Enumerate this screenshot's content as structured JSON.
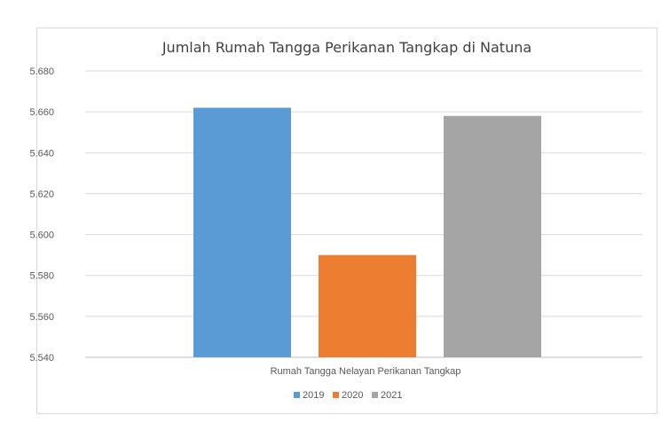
{
  "chart_data": {
    "type": "bar",
    "title": "Jumlah Rumah Tangga Perikanan Tangkap di Natuna",
    "categories": [
      "Rumah Tangga Nelayan Perikanan Tangkap"
    ],
    "series": [
      {
        "name": "2019",
        "values": [
          5662
        ],
        "color": "#5b9bd5"
      },
      {
        "name": "2020",
        "values": [
          5590
        ],
        "color": "#ed7d31"
      },
      {
        "name": "2021",
        "values": [
          5658
        ],
        "color": "#a5a5a5"
      }
    ],
    "ylim": [
      5540,
      5680
    ],
    "yticks": [
      "5.540",
      "5.560",
      "5.580",
      "5.600",
      "5.620",
      "5.640",
      "5.660",
      "5.680"
    ],
    "grid": true,
    "legend": "bottom",
    "xlabel": "",
    "ylabel": ""
  }
}
